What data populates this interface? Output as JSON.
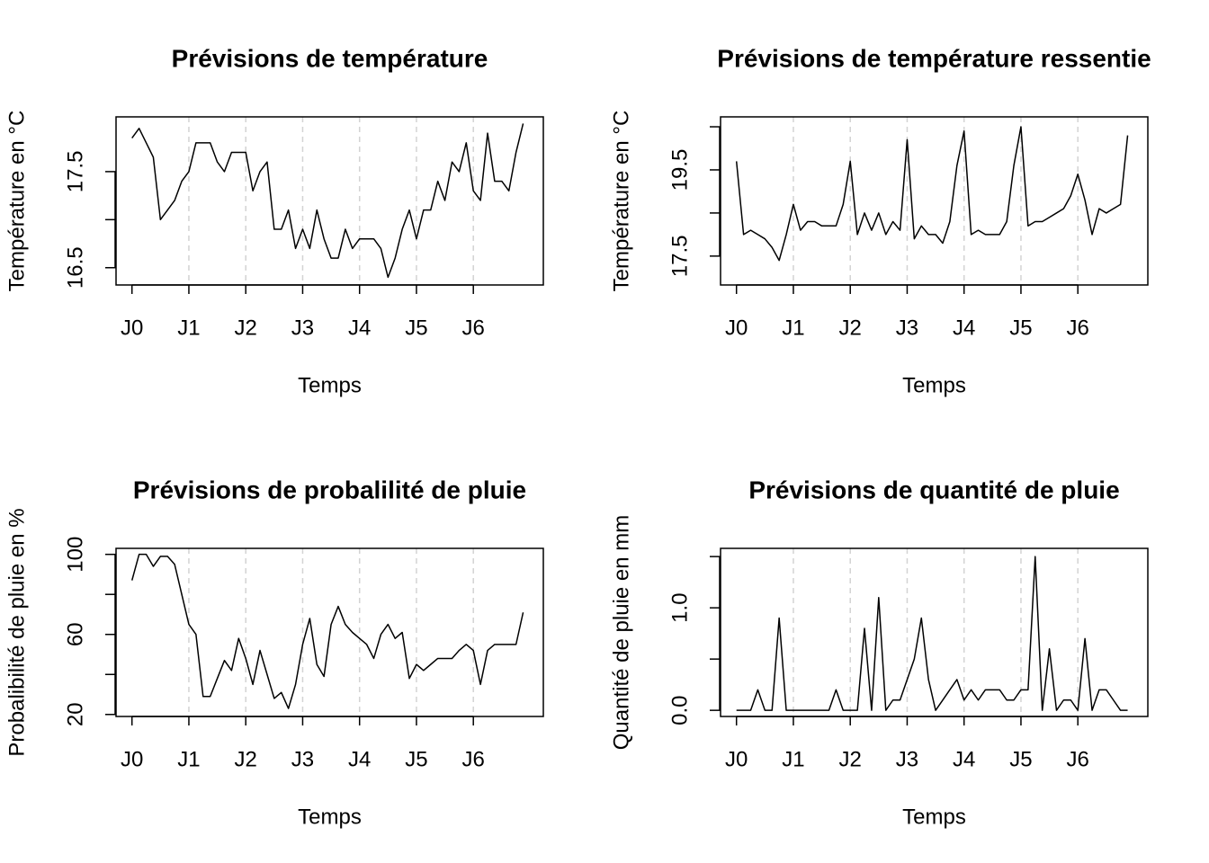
{
  "chart_data": [
    {
      "type": "line",
      "title": "Prévisions de température",
      "xlabel": "Temps",
      "ylabel": "Température en °C",
      "color": "#000000",
      "x": [
        0,
        0.125,
        0.25,
        0.375,
        0.5,
        0.625,
        0.75,
        0.875,
        1,
        1.125,
        1.25,
        1.375,
        1.5,
        1.625,
        1.75,
        1.875,
        2,
        2.125,
        2.25,
        2.375,
        2.5,
        2.625,
        2.75,
        2.875,
        3,
        3.125,
        3.25,
        3.375,
        3.5,
        3.625,
        3.75,
        3.875,
        4,
        4.125,
        4.25,
        4.375,
        4.5,
        4.625,
        4.75,
        4.875,
        5,
        5.125,
        5.25,
        5.375,
        5.5,
        5.625,
        5.75,
        5.875,
        6,
        6.125,
        6.25,
        6.375,
        6.5,
        6.625,
        6.75,
        6.875
      ],
      "values": [
        17.85,
        17.95,
        17.8,
        17.65,
        17.0,
        17.1,
        17.2,
        17.4,
        17.5,
        17.8,
        17.8,
        17.8,
        17.6,
        17.5,
        17.7,
        17.7,
        17.7,
        17.3,
        17.5,
        17.6,
        16.9,
        16.9,
        17.1,
        16.7,
        16.9,
        16.7,
        17.1,
        16.8,
        16.6,
        16.6,
        16.9,
        16.7,
        16.8,
        16.8,
        16.8,
        16.7,
        16.4,
        16.6,
        16.9,
        17.1,
        16.8,
        17.1,
        17.1,
        17.4,
        17.2,
        17.6,
        17.5,
        17.8,
        17.3,
        17.2,
        17.9,
        17.4,
        17.4,
        17.3,
        17.7,
        18.0
      ],
      "xlim": [
        -0.28,
        7.23
      ],
      "ylim": [
        16.32,
        18.07
      ],
      "xticks": [
        {
          "value": 0,
          "label": "J0"
        },
        {
          "value": 1,
          "label": "J1"
        },
        {
          "value": 2,
          "label": "J2"
        },
        {
          "value": 3,
          "label": "J3"
        },
        {
          "value": 4,
          "label": "J4"
        },
        {
          "value": 5,
          "label": "J5"
        },
        {
          "value": 6,
          "label": "J6"
        }
      ],
      "yticks": [
        16.5,
        {
          "value": 17,
          "label": null
        },
        17.5
      ],
      "xgrid": [
        1,
        2,
        3,
        4,
        5,
        6
      ]
    },
    {
      "type": "line",
      "title": "Prévisions de température ressentie",
      "xlabel": "Temps",
      "ylabel": "Température en °C",
      "color": "#000000",
      "x": [
        0,
        0.125,
        0.25,
        0.375,
        0.5,
        0.625,
        0.75,
        0.875,
        1,
        1.125,
        1.25,
        1.375,
        1.5,
        1.625,
        1.75,
        1.875,
        2,
        2.125,
        2.25,
        2.375,
        2.5,
        2.625,
        2.75,
        2.875,
        3,
        3.125,
        3.25,
        3.375,
        3.5,
        3.625,
        3.75,
        3.875,
        4,
        4.125,
        4.25,
        4.375,
        4.5,
        4.625,
        4.75,
        4.875,
        5,
        5.125,
        5.25,
        5.375,
        5.5,
        5.625,
        5.75,
        5.875,
        6,
        6.125,
        6.25,
        6.375,
        6.5,
        6.625,
        6.75,
        6.875
      ],
      "values": [
        19.7,
        18.0,
        18.1,
        18.0,
        17.9,
        17.7,
        17.4,
        18.0,
        18.7,
        18.1,
        18.3,
        18.3,
        18.2,
        18.2,
        18.2,
        18.7,
        19.7,
        18.0,
        18.5,
        18.1,
        18.5,
        18.0,
        18.3,
        18.1,
        20.2,
        17.9,
        18.2,
        18.0,
        18.0,
        17.8,
        18.3,
        19.6,
        20.4,
        18.0,
        18.1,
        18.0,
        18.0,
        18.0,
        18.3,
        19.6,
        20.5,
        18.2,
        18.3,
        18.3,
        18.4,
        18.5,
        18.6,
        18.9,
        19.4,
        18.8,
        18.0,
        18.6,
        18.5,
        18.6,
        18.7,
        20.3
      ],
      "xlim": [
        -0.28,
        7.23
      ],
      "ylim": [
        16.83,
        20.73
      ],
      "xticks": [
        {
          "value": 0,
          "label": "J0"
        },
        {
          "value": 1,
          "label": "J1"
        },
        {
          "value": 2,
          "label": "J2"
        },
        {
          "value": 3,
          "label": "J3"
        },
        {
          "value": 4,
          "label": "J4"
        },
        {
          "value": 5,
          "label": "J5"
        },
        {
          "value": 6,
          "label": "J6"
        }
      ],
      "yticks": [
        17.5,
        {
          "value": 18.5,
          "label": null
        },
        19.5,
        {
          "value": 20.5,
          "label": null
        }
      ],
      "xgrid": [
        1,
        2,
        3,
        4,
        5,
        6
      ]
    },
    {
      "type": "line",
      "title": "Prévisions de probalilité de pluie",
      "xlabel": "Temps",
      "ylabel": "Probalibilité de pluie en %",
      "color": "#000000",
      "x": [
        0,
        0.125,
        0.25,
        0.375,
        0.5,
        0.625,
        0.75,
        0.875,
        1,
        1.125,
        1.25,
        1.375,
        1.5,
        1.625,
        1.75,
        1.875,
        2,
        2.125,
        2.25,
        2.375,
        2.5,
        2.625,
        2.75,
        2.875,
        3,
        3.125,
        3.25,
        3.375,
        3.5,
        3.625,
        3.75,
        3.875,
        4,
        4.125,
        4.25,
        4.375,
        4.5,
        4.625,
        4.75,
        4.875,
        5,
        5.125,
        5.25,
        5.375,
        5.5,
        5.625,
        5.75,
        5.875,
        6,
        6.125,
        6.25,
        6.375,
        6.5,
        6.625,
        6.75,
        6.875
      ],
      "values": [
        87,
        100,
        100,
        94,
        99,
        99,
        95,
        80,
        65,
        60,
        29,
        29,
        38,
        47,
        42,
        58,
        48,
        35,
        52,
        40,
        28,
        31,
        23,
        35,
        55,
        68,
        45,
        39,
        65,
        74,
        65,
        61,
        58,
        55,
        48,
        60,
        65,
        58,
        61,
        38,
        45,
        42,
        45,
        48,
        48,
        48,
        52,
        55,
        52,
        35,
        52,
        55,
        55,
        55,
        55,
        71
      ],
      "xlim": [
        -0.28,
        7.23
      ],
      "ylim": [
        19,
        103
      ],
      "xticks": [
        {
          "value": 0,
          "label": "J0"
        },
        {
          "value": 1,
          "label": "J1"
        },
        {
          "value": 2,
          "label": "J2"
        },
        {
          "value": 3,
          "label": "J3"
        },
        {
          "value": 4,
          "label": "J4"
        },
        {
          "value": 5,
          "label": "J5"
        },
        {
          "value": 6,
          "label": "J6"
        }
      ],
      "yticks": [
        20,
        {
          "value": 40,
          "label": null
        },
        60,
        {
          "value": 80,
          "label": null
        },
        100
      ],
      "xgrid": [
        1,
        2,
        3,
        4,
        5,
        6
      ]
    },
    {
      "type": "line",
      "title": "Prévisions de quantité de pluie",
      "xlabel": "Temps",
      "ylabel": "Quantité de pluie en mm",
      "color": "#000000",
      "x": [
        0,
        0.125,
        0.25,
        0.375,
        0.5,
        0.625,
        0.75,
        0.875,
        1,
        1.125,
        1.25,
        1.375,
        1.5,
        1.625,
        1.75,
        1.875,
        2,
        2.125,
        2.25,
        2.375,
        2.5,
        2.625,
        2.75,
        2.875,
        3,
        3.125,
        3.25,
        3.375,
        3.5,
        3.625,
        3.75,
        3.875,
        4,
        4.125,
        4.25,
        4.375,
        4.5,
        4.625,
        4.75,
        4.875,
        5,
        5.125,
        5.25,
        5.375,
        5.5,
        5.625,
        5.75,
        5.875,
        6,
        6.125,
        6.25,
        6.375,
        6.5,
        6.625,
        6.75,
        6.875
      ],
      "values": [
        0,
        0,
        0,
        0.2,
        0,
        0,
        0.9,
        0,
        0,
        0,
        0,
        0,
        0,
        0,
        0.2,
        0,
        0,
        0,
        0.8,
        0,
        1.1,
        0,
        0.1,
        0.1,
        0.3,
        0.5,
        0.9,
        0.3,
        0,
        0.1,
        0.2,
        0.3,
        0.1,
        0.2,
        0.1,
        0.2,
        0.2,
        0.2,
        0.1,
        0.1,
        0.2,
        0.2,
        1.5,
        0,
        0.6,
        0,
        0.1,
        0.1,
        0,
        0.7,
        0,
        0.2,
        0.2,
        0.1,
        0,
        0
      ],
      "xlim": [
        -0.28,
        7.23
      ],
      "ylim": [
        -0.06,
        1.58
      ],
      "xticks": [
        {
          "value": 0,
          "label": "J0"
        },
        {
          "value": 1,
          "label": "J1"
        },
        {
          "value": 2,
          "label": "J2"
        },
        {
          "value": 3,
          "label": "J3"
        },
        {
          "value": 4,
          "label": "J4"
        },
        {
          "value": 5,
          "label": "J5"
        },
        {
          "value": 6,
          "label": "J6"
        }
      ],
      "yticks": [
        {
          "value": 0,
          "label": "0.0"
        },
        {
          "value": 0.5,
          "label": null
        },
        {
          "value": 1,
          "label": "1.0"
        },
        {
          "value": 1.5,
          "label": null
        }
      ],
      "xgrid": [
        1,
        2,
        3,
        4,
        5,
        6
      ]
    }
  ]
}
